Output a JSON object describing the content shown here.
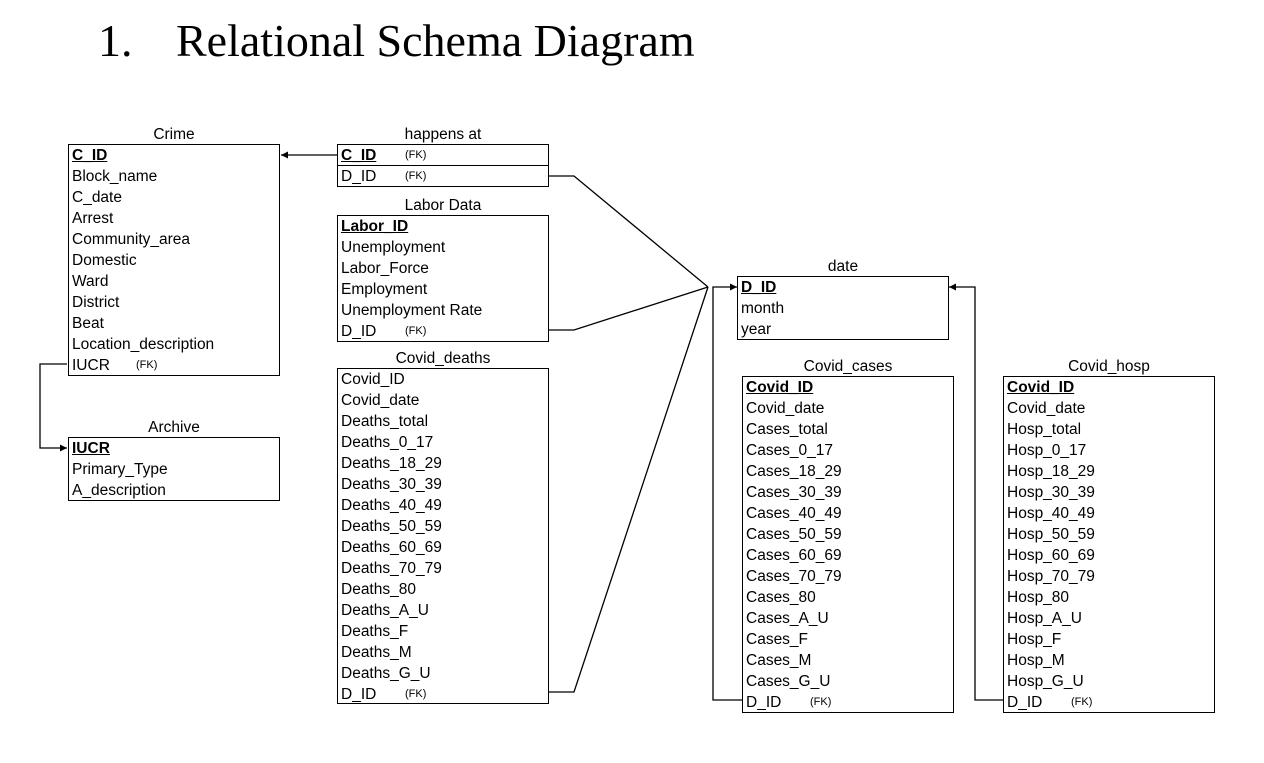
{
  "heading": {
    "number": "1.",
    "title": "Relational Schema Diagram"
  },
  "tables": {
    "crime": {
      "name": "Crime",
      "attributes": [
        {
          "label": "C_ID",
          "pk": true
        },
        {
          "label": "Block_name"
        },
        {
          "label": "C_date"
        },
        {
          "label": "Arrest"
        },
        {
          "label": "Community_area"
        },
        {
          "label": "Domestic"
        },
        {
          "label": "Ward"
        },
        {
          "label": "District"
        },
        {
          "label": "Beat"
        },
        {
          "label": "Location_description"
        },
        {
          "label": "IUCR",
          "fk": "(FK)"
        }
      ]
    },
    "happens_at": {
      "name": "happens at",
      "attributes": [
        {
          "label": "C_ID",
          "pk": true,
          "fk": "(FK)"
        },
        {
          "label": "D_ID",
          "fk": "(FK)"
        }
      ]
    },
    "labor_data": {
      "name": "Labor Data",
      "attributes": [
        {
          "label": "Labor_ID",
          "pk": true
        },
        {
          "label": "Unemployment"
        },
        {
          "label": "Labor_Force"
        },
        {
          "label": "Employment"
        },
        {
          "label": "Unemployment Rate"
        },
        {
          "label": "D_ID",
          "fk": "(FK)"
        }
      ]
    },
    "covid_deaths": {
      "name": "Covid_deaths",
      "attributes": [
        {
          "label": "Covid_ID"
        },
        {
          "label": "Covid_date"
        },
        {
          "label": "Deaths_total"
        },
        {
          "label": "Deaths_0_17"
        },
        {
          "label": "Deaths_18_29"
        },
        {
          "label": "Deaths_30_39"
        },
        {
          "label": "Deaths_40_49"
        },
        {
          "label": "Deaths_50_59"
        },
        {
          "label": "Deaths_60_69"
        },
        {
          "label": "Deaths_70_79"
        },
        {
          "label": "Deaths_80"
        },
        {
          "label": "Deaths_A_U"
        },
        {
          "label": "Deaths_F"
        },
        {
          "label": "Deaths_M"
        },
        {
          "label": "Deaths_G_U"
        },
        {
          "label": "D_ID",
          "fk": "(FK)"
        }
      ]
    },
    "archive": {
      "name": "Archive",
      "attributes": [
        {
          "label": "IUCR",
          "pk": true
        },
        {
          "label": "Primary_Type"
        },
        {
          "label": "A_description"
        }
      ]
    },
    "date": {
      "name": "date",
      "attributes": [
        {
          "label": "D_ID",
          "pk": true
        },
        {
          "label": "month"
        },
        {
          "label": "year"
        }
      ]
    },
    "covid_cases": {
      "name": "Covid_cases",
      "attributes": [
        {
          "label": "Covid_ID",
          "pk": true
        },
        {
          "label": "Covid_date"
        },
        {
          "label": "Cases_total"
        },
        {
          "label": "Cases_0_17"
        },
        {
          "label": "Cases_18_29"
        },
        {
          "label": "Cases_30_39"
        },
        {
          "label": "Cases_40_49"
        },
        {
          "label": "Cases_50_59"
        },
        {
          "label": "Cases_60_69"
        },
        {
          "label": "Cases_70_79"
        },
        {
          "label": "Cases_80"
        },
        {
          "label": "Cases_A_U"
        },
        {
          "label": "Cases_F"
        },
        {
          "label": "Cases_M"
        },
        {
          "label": "Cases_G_U"
        },
        {
          "label": "D_ID",
          "fk": "(FK)"
        }
      ]
    },
    "covid_hosp": {
      "name": "Covid_hosp",
      "attributes": [
        {
          "label": "Covid_ID",
          "pk": true
        },
        {
          "label": "Covid_date"
        },
        {
          "label": "Hosp_total"
        },
        {
          "label": "Hosp_0_17"
        },
        {
          "label": "Hosp_18_29"
        },
        {
          "label": "Hosp_30_39"
        },
        {
          "label": "Hosp_40_49"
        },
        {
          "label": "Hosp_50_59"
        },
        {
          "label": "Hosp_60_69"
        },
        {
          "label": "Hosp_70_79"
        },
        {
          "label": "Hosp_80"
        },
        {
          "label": "Hosp_A_U"
        },
        {
          "label": "Hosp_F"
        },
        {
          "label": "Hosp_M"
        },
        {
          "label": "Hosp_G_U"
        },
        {
          "label": "D_ID",
          "fk": "(FK)"
        }
      ]
    }
  }
}
